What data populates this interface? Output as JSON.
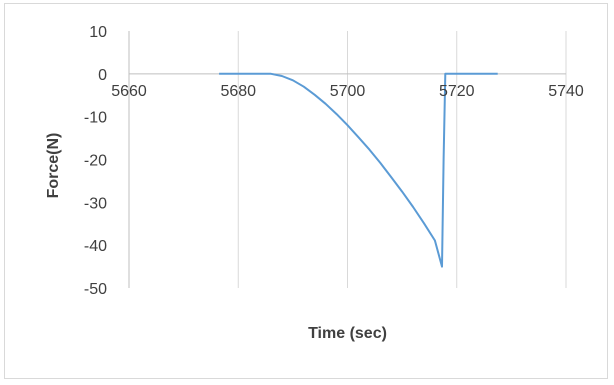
{
  "chart_data": {
    "type": "line",
    "title": "",
    "xlabel": "Time (sec)",
    "ylabel": "Force(N)",
    "xlim": [
      5660,
      5740
    ],
    "ylim": [
      -50,
      10
    ],
    "x_ticks": [
      5660,
      5680,
      5700,
      5720,
      5740
    ],
    "y_ticks": [
      10,
      0,
      -10,
      -20,
      -30,
      -40,
      -50
    ],
    "grid": "vertical",
    "legend": "none",
    "line_color": "#5b9bd5",
    "series": [
      {
        "x": [
          5676.5,
          5686,
          5688,
          5690,
          5692,
          5694,
          5696,
          5698,
          5700,
          5702,
          5704,
          5706,
          5708,
          5710,
          5712,
          5714,
          5716,
          5717.3,
          5717.6,
          5717.9,
          5718.3,
          5722,
          5727.5
        ],
        "y": [
          0,
          0,
          -0.5,
          -1.5,
          -3,
          -4.9,
          -7,
          -9.4,
          -12,
          -14.8,
          -17.7,
          -20.8,
          -24.1,
          -27.5,
          -31.1,
          -34.9,
          -38.9,
          -45,
          -20,
          0,
          0,
          0,
          0
        ]
      }
    ]
  }
}
